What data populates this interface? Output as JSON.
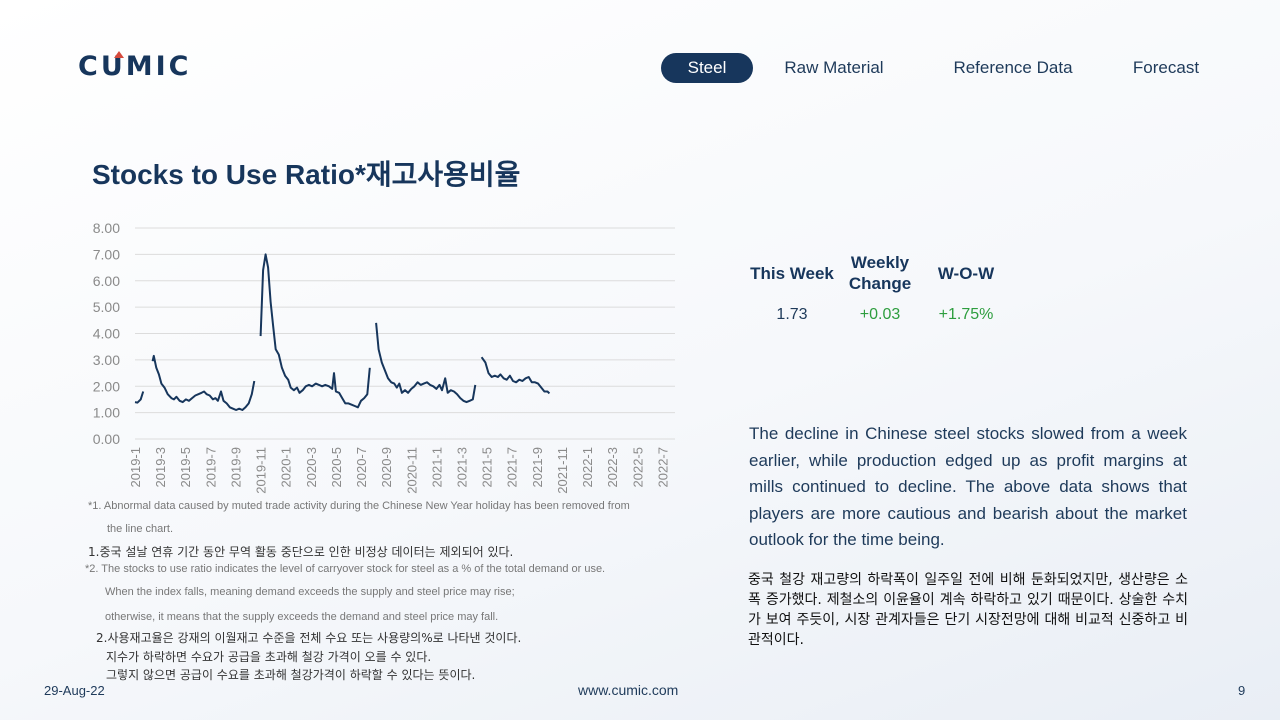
{
  "logo": {
    "text": "CUMIC"
  },
  "nav": {
    "items": [
      {
        "label": "Steel",
        "active": true
      },
      {
        "label": "Raw Material",
        "active": false
      },
      {
        "label": "Reference Data",
        "active": false
      },
      {
        "label": "Forecast",
        "active": false
      }
    ]
  },
  "page_title": "Stocks to Use Ratio*재고사용비율",
  "chart_data": {
    "type": "line",
    "title": "",
    "xlabel": "",
    "ylabel": "",
    "ylim": [
      0,
      8
    ],
    "yticks": [
      "0.00",
      "1.00",
      "2.00",
      "3.00",
      "4.00",
      "5.00",
      "6.00",
      "7.00",
      "8.00"
    ],
    "xticks": [
      "2019-1",
      "2019-3",
      "2019-5",
      "2019-7",
      "2019-9",
      "2019-11",
      "2020-1",
      "2020-3",
      "2020-5",
      "2020-7",
      "2020-9",
      "2020-11",
      "2021-1",
      "2021-3",
      "2021-5",
      "2021-7",
      "2021-9",
      "2021-11",
      "2022-1",
      "2022-3",
      "2022-5",
      "2022-7"
    ],
    "grid": true,
    "legend": "none",
    "color": "#17365c",
    "series": [
      {
        "segments": [
          [
            [
              0,
              1.4
            ],
            [
              0.2,
              1.38
            ],
            [
              0.45,
              1.5
            ],
            [
              0.65,
              1.8
            ]
          ],
          [
            [
              1.4,
              2.95
            ],
            [
              1.5,
              3.15
            ],
            [
              1.7,
              2.7
            ],
            [
              1.9,
              2.45
            ],
            [
              2.1,
              2.1
            ],
            [
              2.35,
              1.95
            ],
            [
              2.6,
              1.7
            ],
            [
              2.9,
              1.55
            ],
            [
              3.1,
              1.5
            ],
            [
              3.3,
              1.6
            ],
            [
              3.55,
              1.45
            ],
            [
              3.8,
              1.4
            ],
            [
              4.05,
              1.5
            ],
            [
              4.3,
              1.45
            ],
            [
              4.55,
              1.55
            ],
            [
              4.8,
              1.65
            ],
            [
              5.05,
              1.7
            ],
            [
              5.3,
              1.75
            ],
            [
              5.5,
              1.8
            ],
            [
              5.7,
              1.7
            ],
            [
              5.95,
              1.65
            ],
            [
              6.2,
              1.5
            ],
            [
              6.4,
              1.55
            ],
            [
              6.6,
              1.45
            ],
            [
              6.85,
              1.8
            ],
            [
              7.05,
              1.45
            ],
            [
              7.3,
              1.35
            ],
            [
              7.55,
              1.2
            ],
            [
              7.8,
              1.15
            ],
            [
              8.05,
              1.1
            ],
            [
              8.3,
              1.15
            ],
            [
              8.55,
              1.1
            ],
            [
              8.8,
              1.2
            ],
            [
              9.05,
              1.35
            ],
            [
              9.3,
              1.7
            ],
            [
              9.5,
              2.2
            ]
          ],
          [
            [
              10.0,
              3.9
            ],
            [
              10.2,
              6.4
            ],
            [
              10.4,
              7.0
            ],
            [
              10.6,
              6.5
            ],
            [
              10.8,
              5.2
            ],
            [
              11.0,
              4.3
            ],
            [
              11.2,
              3.4
            ],
            [
              11.45,
              3.2
            ],
            [
              11.7,
              2.7
            ],
            [
              11.95,
              2.4
            ],
            [
              12.2,
              2.25
            ],
            [
              12.4,
              1.95
            ],
            [
              12.65,
              1.85
            ],
            [
              12.9,
              1.95
            ],
            [
              13.1,
              1.75
            ],
            [
              13.35,
              1.85
            ],
            [
              13.6,
              2.0
            ],
            [
              13.85,
              2.05
            ],
            [
              14.1,
              2.0
            ],
            [
              14.4,
              2.1
            ],
            [
              14.65,
              2.05
            ],
            [
              14.9,
              2.0
            ],
            [
              15.15,
              2.05
            ],
            [
              15.45,
              2.0
            ],
            [
              15.7,
              1.9
            ],
            [
              15.85,
              2.5
            ],
            [
              16.0,
              1.8
            ],
            [
              16.25,
              1.75
            ],
            [
              16.5,
              1.55
            ],
            [
              16.75,
              1.35
            ],
            [
              17.0,
              1.35
            ],
            [
              17.25,
              1.3
            ],
            [
              17.5,
              1.25
            ],
            [
              17.75,
              1.2
            ],
            [
              18.0,
              1.45
            ],
            [
              18.25,
              1.55
            ],
            [
              18.5,
              1.7
            ],
            [
              18.7,
              2.7
            ]
          ],
          [
            [
              19.2,
              4.4
            ],
            [
              19.4,
              3.4
            ],
            [
              19.65,
              2.9
            ],
            [
              19.9,
              2.6
            ],
            [
              20.15,
              2.3
            ],
            [
              20.4,
              2.15
            ],
            [
              20.65,
              2.1
            ],
            [
              20.85,
              1.95
            ],
            [
              21.05,
              2.1
            ],
            [
              21.25,
              1.75
            ],
            [
              21.5,
              1.85
            ],
            [
              21.75,
              1.75
            ],
            [
              22.0,
              1.9
            ],
            [
              22.25,
              2.0
            ],
            [
              22.5,
              2.15
            ],
            [
              22.75,
              2.05
            ],
            [
              23.0,
              2.1
            ],
            [
              23.25,
              2.15
            ],
            [
              23.5,
              2.05
            ],
            [
              23.75,
              2.0
            ],
            [
              24.0,
              1.9
            ],
            [
              24.25,
              2.05
            ],
            [
              24.45,
              1.85
            ],
            [
              24.7,
              2.3
            ],
            [
              24.9,
              1.75
            ],
            [
              25.15,
              1.85
            ],
            [
              25.4,
              1.8
            ],
            [
              25.65,
              1.7
            ],
            [
              25.9,
              1.55
            ],
            [
              26.15,
              1.45
            ],
            [
              26.4,
              1.4
            ],
            [
              26.65,
              1.45
            ],
            [
              26.9,
              1.5
            ],
            [
              27.1,
              2.05
            ]
          ],
          [
            [
              27.6,
              3.1
            ],
            [
              27.9,
              2.9
            ],
            [
              28.15,
              2.5
            ],
            [
              28.4,
              2.35
            ],
            [
              28.65,
              2.4
            ],
            [
              28.9,
              2.35
            ],
            [
              29.1,
              2.45
            ],
            [
              29.35,
              2.3
            ],
            [
              29.6,
              2.25
            ],
            [
              29.85,
              2.4
            ],
            [
              30.1,
              2.2
            ],
            [
              30.35,
              2.15
            ],
            [
              30.6,
              2.25
            ],
            [
              30.85,
              2.2
            ],
            [
              31.1,
              2.3
            ],
            [
              31.35,
              2.35
            ],
            [
              31.6,
              2.15
            ],
            [
              31.85,
              2.15
            ],
            [
              32.1,
              2.1
            ],
            [
              32.35,
              1.95
            ],
            [
              32.6,
              1.8
            ],
            [
              32.85,
              1.8
            ],
            [
              33.0,
              1.73
            ]
          ]
        ]
      }
    ],
    "x_count": 44
  },
  "notes": {
    "n1_en_a": "*1. Abnormal data caused by muted trade activity during the Chinese New Year holiday has been removed from",
    "n1_en_b": "the line chart.",
    "n1_kr": "1.중국 설날 연휴 기간 동안 무역 활동 중단으로 인한 비정상 데이터는 제외되어 있다.",
    "n2_en_a": "*2. The stocks to use ratio indicates the level of carryover stock for steel as a % of the total demand or use.",
    "n2_en_b": "When the index falls, meaning demand exceeds the supply and steel price may rise;",
    "n2_en_c": "otherwise, it means that the supply exceeds the demand and steel price may fall.",
    "n2_kr_a": "2.사용재고율은 강재의 이월재고 수준을 전체 수요 또는 사용량의%로 나타낸 것이다.",
    "n2_kr_b": "지수가 하락하면 수요가 공급을 초과해 철강 가격이 오를 수 있다.",
    "n2_kr_c": "그렇지 않으면 공급이 수요를 초과해 철강가격이 하락할 수 있다는 뜻이다."
  },
  "stats": {
    "this_week_label": "This Week",
    "weekly_change_label_1": "Weekly",
    "weekly_change_label_2": "Change",
    "wow_label": "W-O-W",
    "this_week_value": "1.73",
    "weekly_change_value": "+0.03",
    "wow_value": "+1.75%",
    "value_color": "#1e3a5a",
    "positive_color": "#2e9e3f"
  },
  "description_en": "The decline in Chinese steel stocks slowed from a week earlier, while production edged up as profit margins at mills continued to decline. The above data shows that players are more cautious and bearish about the market outlook for the time being.",
  "description_kr": "중국 철강 재고량의 하락폭이 일주일 전에 비해 둔화되었지만, 생산량은 소폭 증가했다. 제철소의 이윤율이 계속 하락하고 있기 때문이다. 상술한 수치가 보여 주듯이, 시장 관계자들은 단기 시장전망에 대해 비교적 신중하고 비관적이다.",
  "footer": {
    "date": "29-Aug-22",
    "url": "www.cumic.com",
    "page": "9"
  }
}
